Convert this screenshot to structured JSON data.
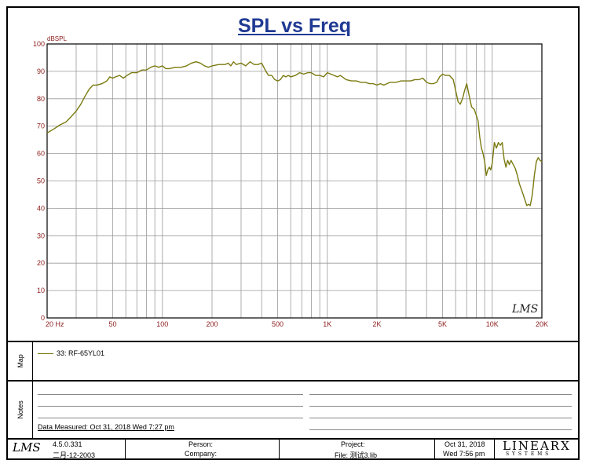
{
  "title": "SPL vs Freq",
  "chart_data": {
    "type": "line",
    "title": "SPL vs Freq",
    "ylabel": "dBSPL",
    "xlabel": "",
    "xscale": "log",
    "xlim": [
      20,
      20000
    ],
    "ylim": [
      0,
      100
    ],
    "grid": true,
    "y_ticks": [
      0,
      10,
      20,
      30,
      40,
      50,
      60,
      70,
      80,
      90,
      100
    ],
    "x_ticks": [
      {
        "value": 20,
        "label": "20 Hz"
      },
      {
        "value": 50,
        "label": "50"
      },
      {
        "value": 100,
        "label": "100"
      },
      {
        "value": 200,
        "label": "200"
      },
      {
        "value": 500,
        "label": "500"
      },
      {
        "value": 1000,
        "label": "1K"
      },
      {
        "value": 2000,
        "label": "2K"
      },
      {
        "value": 5000,
        "label": "5K"
      },
      {
        "value": 10000,
        "label": "10K"
      },
      {
        "value": 20000,
        "label": "20K"
      }
    ],
    "series": [
      {
        "name": "33: RF-65YL01",
        "color": "#7a7a10",
        "points": [
          [
            20,
            67.5
          ],
          [
            22,
            69
          ],
          [
            24,
            70.5
          ],
          [
            26,
            71.5
          ],
          [
            28,
            73.5
          ],
          [
            30,
            75.5
          ],
          [
            32,
            78
          ],
          [
            34,
            81
          ],
          [
            36,
            83.5
          ],
          [
            38,
            85
          ],
          [
            40,
            85
          ],
          [
            43,
            85.5
          ],
          [
            46,
            86.5
          ],
          [
            48,
            88
          ],
          [
            50,
            87.5
          ],
          [
            52,
            88
          ],
          [
            55,
            88.5
          ],
          [
            58,
            87.5
          ],
          [
            61,
            88.5
          ],
          [
            65,
            89.5
          ],
          [
            70,
            89.5
          ],
          [
            75,
            90.5
          ],
          [
            80,
            90.5
          ],
          [
            85,
            91.5
          ],
          [
            90,
            92
          ],
          [
            95,
            91.5
          ],
          [
            100,
            92
          ],
          [
            105,
            91
          ],
          [
            110,
            91
          ],
          [
            120,
            91.5
          ],
          [
            130,
            91.5
          ],
          [
            140,
            92
          ],
          [
            150,
            93
          ],
          [
            160,
            93.5
          ],
          [
            170,
            93
          ],
          [
            180,
            92
          ],
          [
            190,
            91.5
          ],
          [
            200,
            92
          ],
          [
            220,
            92.5
          ],
          [
            240,
            92.5
          ],
          [
            250,
            93
          ],
          [
            260,
            92
          ],
          [
            270,
            93.5
          ],
          [
            280,
            92.5
          ],
          [
            300,
            93
          ],
          [
            320,
            92
          ],
          [
            340,
            93.5
          ],
          [
            360,
            92.5
          ],
          [
            380,
            92.5
          ],
          [
            400,
            93
          ],
          [
            420,
            90.5
          ],
          [
            440,
            88.5
          ],
          [
            460,
            88.5
          ],
          [
            480,
            87
          ],
          [
            500,
            86.5
          ],
          [
            520,
            87
          ],
          [
            540,
            88.5
          ],
          [
            560,
            88
          ],
          [
            580,
            88.5
          ],
          [
            600,
            88
          ],
          [
            640,
            88.5
          ],
          [
            680,
            89.5
          ],
          [
            720,
            89
          ],
          [
            760,
            89.5
          ],
          [
            800,
            89.5
          ],
          [
            850,
            88.5
          ],
          [
            900,
            88.5
          ],
          [
            950,
            88
          ],
          [
            1000,
            89.5
          ],
          [
            1050,
            89
          ],
          [
            1100,
            88.5
          ],
          [
            1150,
            88
          ],
          [
            1200,
            88.5
          ],
          [
            1300,
            87
          ],
          [
            1400,
            86.5
          ],
          [
            1500,
            86.5
          ],
          [
            1600,
            86
          ],
          [
            1700,
            86
          ],
          [
            1800,
            85.5
          ],
          [
            1900,
            85.5
          ],
          [
            2000,
            85
          ],
          [
            2100,
            85.5
          ],
          [
            2200,
            85
          ],
          [
            2300,
            85.5
          ],
          [
            2400,
            86
          ],
          [
            2600,
            86
          ],
          [
            2800,
            86.5
          ],
          [
            3000,
            86.5
          ],
          [
            3200,
            86.5
          ],
          [
            3400,
            87
          ],
          [
            3600,
            87
          ],
          [
            3800,
            87.5
          ],
          [
            4000,
            86
          ],
          [
            4200,
            85.5
          ],
          [
            4400,
            85.5
          ],
          [
            4600,
            86
          ],
          [
            4800,
            88
          ],
          [
            5000,
            89
          ],
          [
            5200,
            88.5
          ],
          [
            5500,
            88.5
          ],
          [
            5800,
            87
          ],
          [
            6000,
            83
          ],
          [
            6200,
            79
          ],
          [
            6400,
            78
          ],
          [
            6600,
            80
          ],
          [
            6800,
            83
          ],
          [
            7000,
            85.5
          ],
          [
            7200,
            82
          ],
          [
            7500,
            77
          ],
          [
            7800,
            76
          ],
          [
            8000,
            74
          ],
          [
            8200,
            72
          ],
          [
            8400,
            66
          ],
          [
            8600,
            62
          ],
          [
            8800,
            60
          ],
          [
            9000,
            57
          ],
          [
            9200,
            52
          ],
          [
            9400,
            54
          ],
          [
            9600,
            55
          ],
          [
            9800,
            54
          ],
          [
            10000,
            56.5
          ],
          [
            10300,
            64
          ],
          [
            10600,
            62
          ],
          [
            10900,
            64
          ],
          [
            11200,
            63
          ],
          [
            11500,
            64
          ],
          [
            11800,
            58
          ],
          [
            12100,
            55
          ],
          [
            12400,
            57.5
          ],
          [
            12700,
            56
          ],
          [
            13000,
            57.5
          ],
          [
            13400,
            56
          ],
          [
            13800,
            54.5
          ],
          [
            14200,
            52
          ],
          [
            14600,
            49
          ],
          [
            15000,
            47
          ],
          [
            15400,
            45
          ],
          [
            15800,
            43
          ],
          [
            16200,
            41
          ],
          [
            16600,
            41.5
          ],
          [
            17000,
            41
          ],
          [
            17500,
            45
          ],
          [
            18000,
            52
          ],
          [
            18500,
            57
          ],
          [
            19000,
            58.5
          ],
          [
            19500,
            57.5
          ],
          [
            20000,
            57
          ]
        ]
      }
    ]
  },
  "side_labels": {
    "map": "Map",
    "notes": "Notes"
  },
  "legend": {
    "entry": "33: RF-65YL01"
  },
  "notes": {
    "measured": "Data Measured: Oct 31, 2018  Wed  7:27 pm"
  },
  "watermark": "LMS",
  "footer": {
    "logo": "LMS",
    "version": "4.5.0.331",
    "build_date": "二月-12-2003",
    "person_label": "Person:",
    "company_label": "Company:",
    "project_label": "Project:",
    "file_label": "File: 测试3.lib",
    "date": "Oct 31, 2018",
    "time": "Wed  7:56 pm",
    "brand": "LINEARX",
    "brand_sub": "S Y S T E M S"
  }
}
